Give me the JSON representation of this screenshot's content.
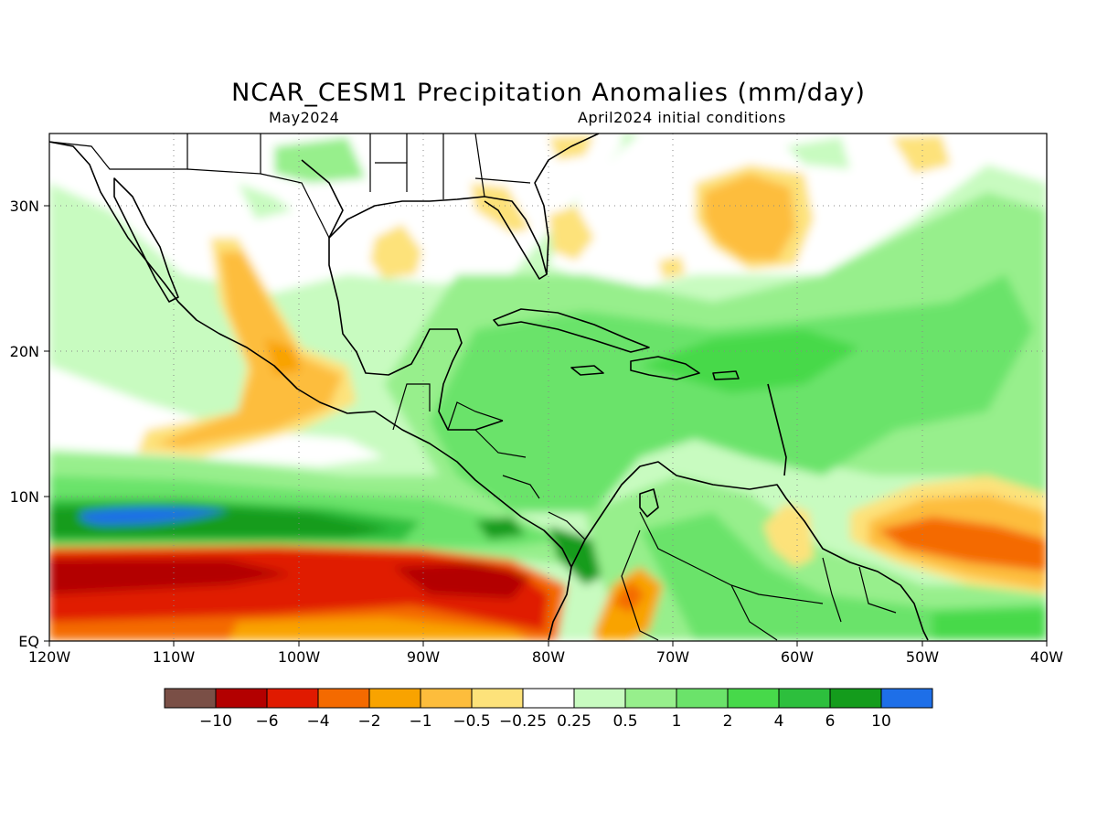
{
  "header": {
    "title": "NCAR_CESM1 Precipitation Anomalies (mm/day)",
    "valid_month": "May2024",
    "init_conditions": "April2024 initial conditions"
  },
  "map": {
    "lat_range": [
      0,
      35
    ],
    "lon_range": [
      -120,
      -40
    ],
    "lon_ticks": [
      "120W",
      "110W",
      "100W",
      "90W",
      "80W",
      "70W",
      "60W",
      "50W",
      "40W"
    ],
    "lat_ticks": [
      "EQ",
      "10N",
      "20N",
      "30N"
    ],
    "gridlines": "dotted",
    "features": [
      "coastlines",
      "country borders",
      "US state borders"
    ]
  },
  "colorbar": {
    "labels": [
      "-10",
      "-6",
      "-4",
      "-2",
      "-1",
      "-0.5",
      "-0.25",
      "0.25",
      "0.5",
      "1",
      "2",
      "4",
      "6",
      "10"
    ],
    "colors": [
      "#7a4f46",
      "#b30000",
      "#e01a00",
      "#f46a00",
      "#f9a300",
      "#fdbd3c",
      "#fde27a",
      "#ffffff",
      "#c8fbc0",
      "#97ef8c",
      "#6be36a",
      "#47d94a",
      "#2dbf3d",
      "#149c1c",
      "#1e6fe8"
    ]
  },
  "chart_data": {
    "type": "heatmap",
    "variable": "Precipitation Anomalies",
    "units": "mm/day",
    "regions": [
      {
        "area": "Eastern Pacific 0-5N, 120W-80W",
        "anomaly": "-4 to -10"
      },
      {
        "area": "Eastern Pacific ITCZ 6-12N, 120W-85W",
        "anomaly": "1 to 6, locally 6 to 10 near 115W"
      },
      {
        "area": "Caribbean Sea and Central America",
        "anomaly": "1 to 4"
      },
      {
        "area": "Panama / NW Colombia",
        "anomaly": "4 to 6"
      },
      {
        "area": "Western Atlantic 20-30N, 55-45W",
        "anomaly": "0.5 to 2"
      },
      {
        "area": "Atlantic 30N, 60-50W",
        "anomaly": "-0.25 to -1"
      },
      {
        "area": "Tropical Atlantic 5-8N, 55-40W",
        "anomaly": "-1 to -4"
      },
      {
        "area": "Western Mexico 15-25N, 108-98W",
        "anomaly": "-0.5 to -2"
      },
      {
        "area": "Guianas 5-8N, 62-57W",
        "anomaly": "-0.25 to -1"
      },
      {
        "area": "Colombia 2-4N, 75-72W",
        "anomaly": "-1 to -4"
      }
    ]
  }
}
